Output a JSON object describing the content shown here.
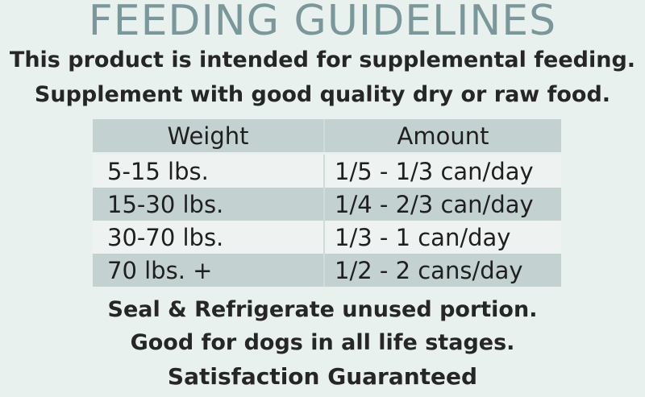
{
  "title": "FEEDING GUIDELINES",
  "intro": {
    "line1": "This product is intended for supplemental feeding.",
    "line2": "Supplement with good quality dry or raw food."
  },
  "table": {
    "headers": {
      "weight": "Weight",
      "amount": "Amount"
    },
    "rows": [
      {
        "weight": "5-15 lbs.",
        "amount": "1/5 - 1/3 can/day"
      },
      {
        "weight": "15-30 lbs.",
        "amount": "1/4 - 2/3 can/day"
      },
      {
        "weight": "30-70 lbs.",
        "amount": "1/3 - 1 can/day"
      },
      {
        "weight": "70 lbs. +",
        "amount": "1/2 - 2 cans/day"
      }
    ]
  },
  "footer": {
    "line1": "Seal & Refrigerate unused portion.",
    "line2": "Good for dogs in all life stages.",
    "line3": "Satisfaction Guaranteed"
  },
  "colors": {
    "background": "#e9f1ef",
    "title": "#7a9799",
    "table_shade": "#c3d2d1",
    "table_plain": "#eef3f2"
  }
}
